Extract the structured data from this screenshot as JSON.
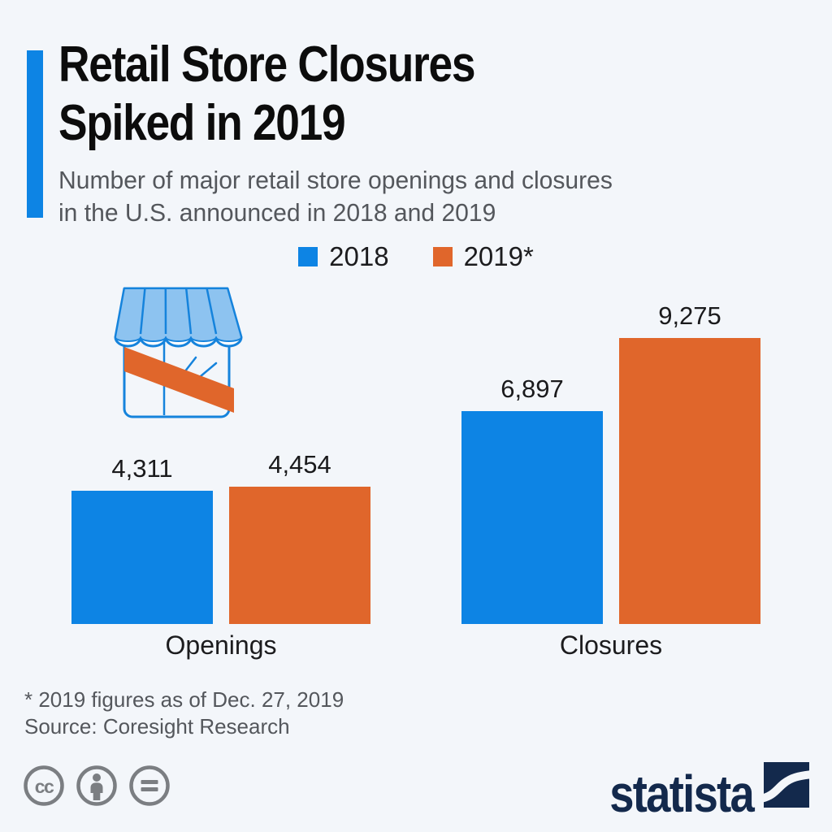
{
  "header": {
    "title_line1": "Retail Store Closures",
    "title_line2": "Spiked in 2019",
    "subtitle_line1": "Number of major retail store openings and closures",
    "subtitle_line2": "in the U.S. announced in 2018 and 2019"
  },
  "chart_data": {
    "type": "bar",
    "categories": [
      "Openings",
      "Closures"
    ],
    "series": [
      {
        "name": "2018",
        "color": "#0D84E4",
        "values": [
          4311,
          6897
        ]
      },
      {
        "name": "2019*",
        "color": "#E0662B",
        "values": [
          4454,
          9275
        ]
      }
    ],
    "ylim": [
      0,
      9275
    ],
    "grid": false,
    "legend_position": "top",
    "value_label_format": "thousands-comma",
    "title": "Retail Store Closures Spiked in 2019",
    "xlabel": "",
    "ylabel": ""
  },
  "colors": {
    "background": "#F3F6FA",
    "accent": "#0D84E4",
    "blue": "#0D84E4",
    "orange": "#E0662B",
    "navy": "#13294C",
    "text_dark": "#0C0C0C",
    "text_gray": "#54575C",
    "license_gray": "#7B7E82",
    "icon_outline_blue": "#1583DC",
    "icon_awning_blue": "#8DC3F0"
  },
  "footer": {
    "footnote": "* 2019 figures as of Dec. 27, 2019",
    "source": "Source: Coresight Research"
  },
  "branding": {
    "logo_text": "statista"
  },
  "icons": {
    "store_closed": "storefront with orange diagonal closed banner",
    "cc": "creative-commons cc badge",
    "attribution": "creative-commons attribution person badge",
    "no_derivatives": "creative-commons no-derivatives equals badge",
    "statista_mark": "navy square with white s-curve"
  }
}
